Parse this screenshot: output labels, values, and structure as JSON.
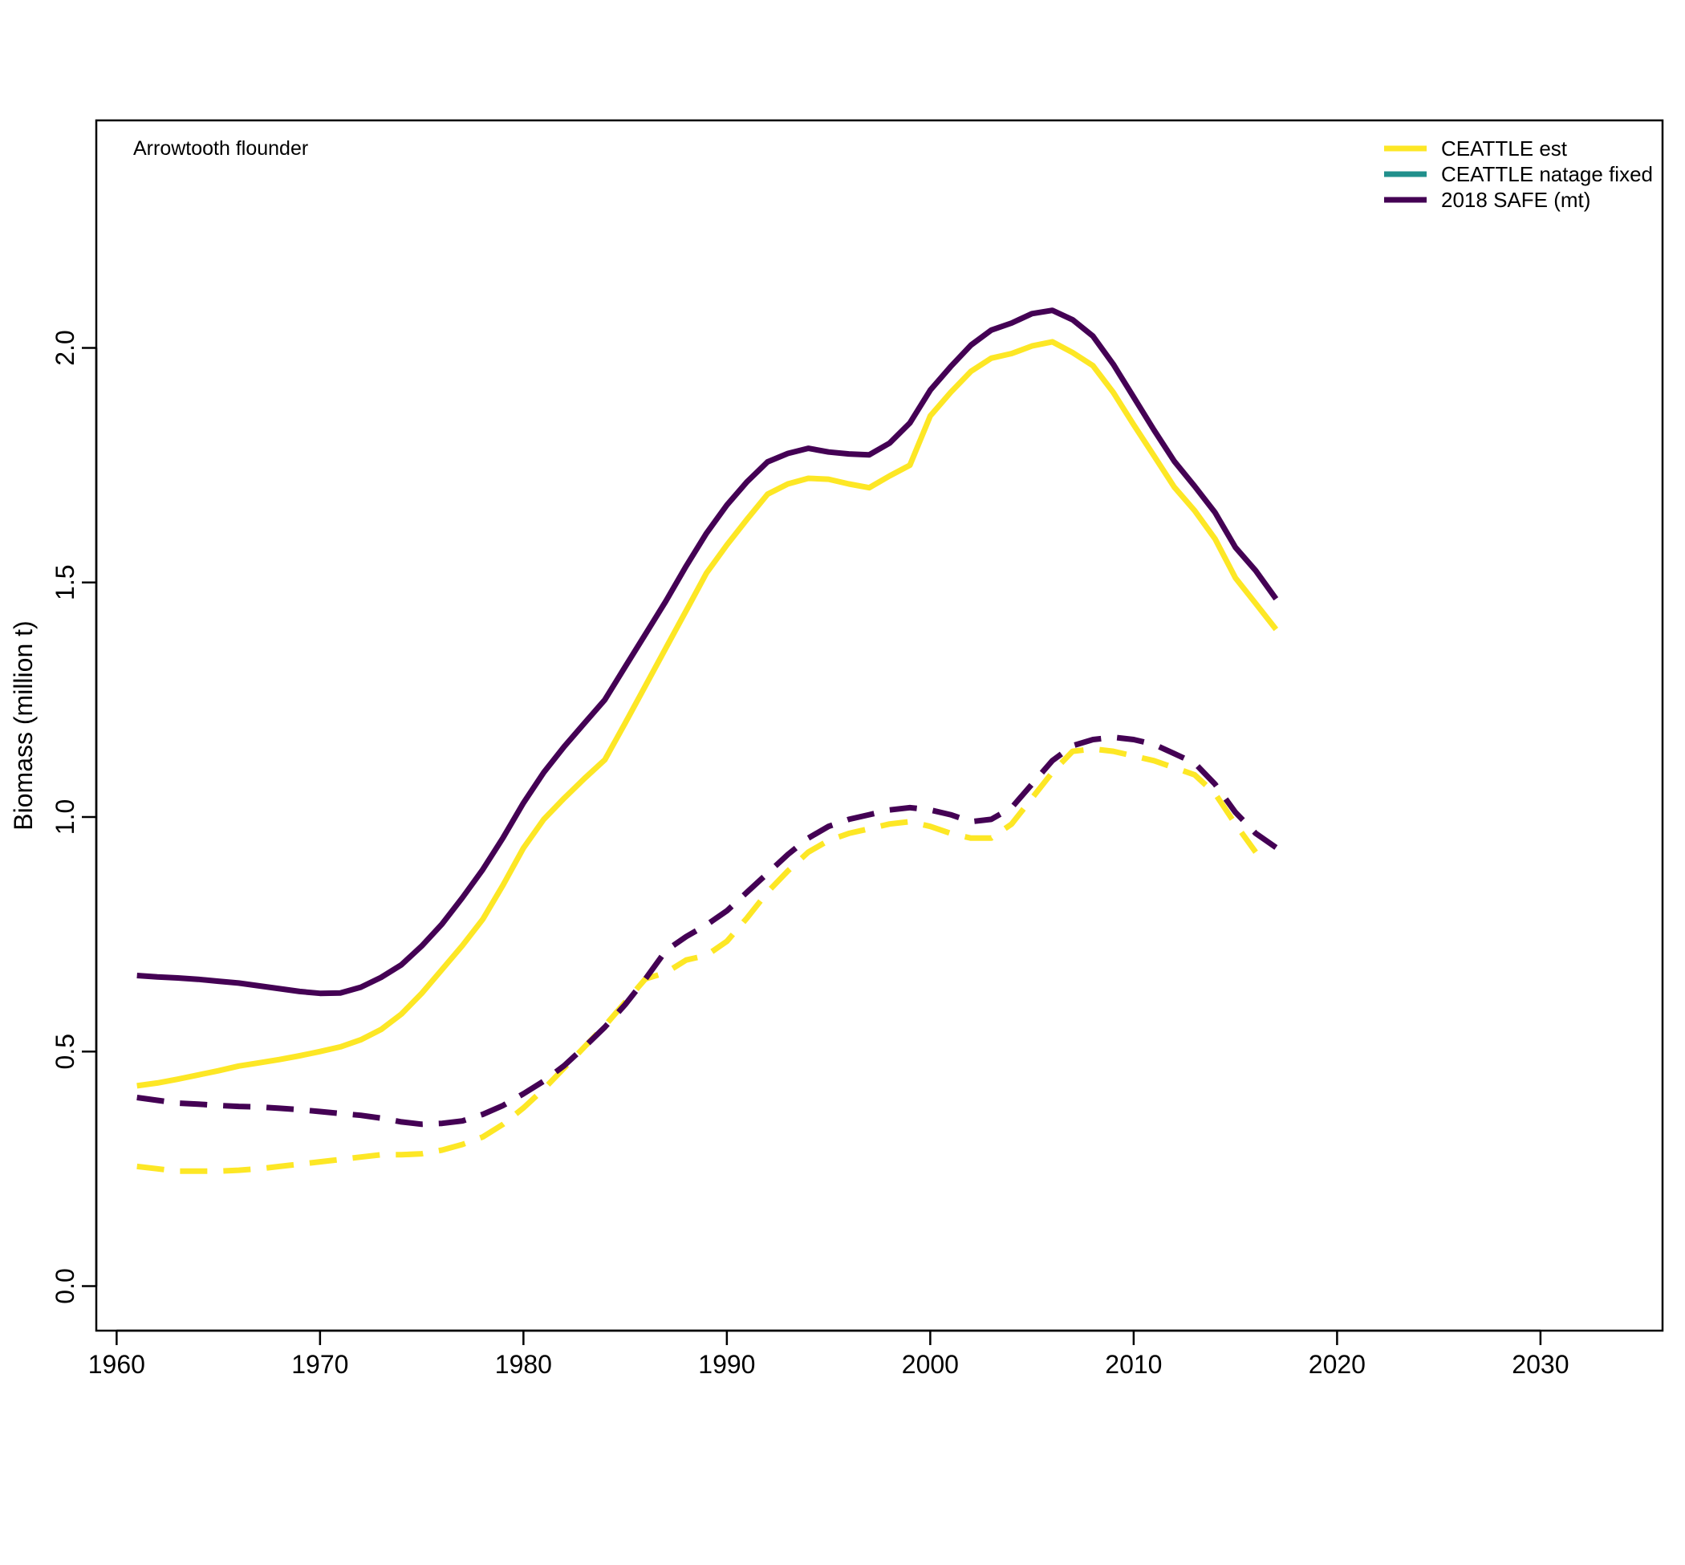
{
  "chart_data": {
    "type": "line",
    "annotation": "Arrowtooth flounder",
    "xlabel": "",
    "ylabel": "Biomass (million t)",
    "xlim": [
      1959,
      2036
    ],
    "ylim": [
      -0.095,
      2.485
    ],
    "x_ticks": [
      1960,
      1970,
      1980,
      1990,
      2000,
      2010,
      2020,
      2030
    ],
    "y_ticks": [
      0.0,
      0.5,
      1.0,
      1.5,
      2.0
    ],
    "y_tick_labels": [
      "0.0",
      "0.5",
      "1.0",
      "1.5",
      "2.0"
    ],
    "grid": false,
    "legend_position": "top-right",
    "legend": [
      {
        "label": "CEATTLE est",
        "color": "#FDE725"
      },
      {
        "label": "CEATTLE natage fixed",
        "color": "#21908C"
      },
      {
        "label": "2018 SAFE (mt)",
        "color": "#440154"
      }
    ],
    "x": [
      1961,
      1962,
      1963,
      1964,
      1965,
      1966,
      1967,
      1968,
      1969,
      1970,
      1971,
      1972,
      1973,
      1974,
      1975,
      1976,
      1977,
      1978,
      1979,
      1980,
      1981,
      1982,
      1983,
      1984,
      1985,
      1986,
      1987,
      1988,
      1989,
      1990,
      1991,
      1992,
      1993,
      1994,
      1995,
      1996,
      1997,
      1998,
      1999,
      2000,
      2001,
      2002,
      2003,
      2004,
      2005,
      2006,
      2007,
      2008,
      2009,
      2010,
      2011,
      2012,
      2013,
      2014,
      2015,
      2016,
      2017
    ],
    "series": [
      {
        "name": "CEATTLE est",
        "color": "#FDE725",
        "dash": false,
        "values": [
          0.427,
          0.433,
          0.441,
          0.45,
          0.459,
          0.469,
          0.476,
          0.483,
          0.491,
          0.5,
          0.51,
          0.525,
          0.547,
          0.58,
          0.624,
          0.675,
          0.726,
          0.782,
          0.855,
          0.934,
          0.995,
          1.04,
          1.082,
          1.122,
          1.2,
          1.28,
          1.36,
          1.44,
          1.52,
          1.58,
          1.635,
          1.688,
          1.71,
          1.722,
          1.72,
          1.71,
          1.702,
          1.727,
          1.75,
          1.855,
          1.905,
          1.95,
          1.978,
          1.988,
          2.004,
          2.013,
          1.99,
          1.962,
          1.905,
          1.836,
          1.77,
          1.703,
          1.653,
          1.593,
          1.51,
          1.455,
          1.4
        ]
      },
      {
        "name": "2018 SAFE (mt)",
        "color": "#440154",
        "dash": false,
        "values": [
          0.662,
          0.659,
          0.657,
          0.654,
          0.65,
          0.646,
          0.64,
          0.634,
          0.628,
          0.624,
          0.625,
          0.637,
          0.658,
          0.685,
          0.725,
          0.772,
          0.828,
          0.888,
          0.956,
          1.03,
          1.095,
          1.15,
          1.2,
          1.25,
          1.32,
          1.39,
          1.46,
          1.535,
          1.605,
          1.665,
          1.715,
          1.757,
          1.775,
          1.786,
          1.778,
          1.774,
          1.772,
          1.797,
          1.84,
          1.91,
          1.96,
          2.006,
          2.038,
          2.053,
          2.073,
          2.08,
          2.06,
          2.025,
          1.965,
          1.895,
          1.825,
          1.758,
          1.705,
          1.649,
          1.575,
          1.525,
          1.465
        ]
      },
      {
        "name": "CEATTLE est",
        "color": "#FDE725",
        "dash": true,
        "values": [
          0.255,
          0.25,
          0.245,
          0.245,
          0.245,
          0.247,
          0.25,
          0.255,
          0.26,
          0.265,
          0.27,
          0.275,
          0.28,
          0.28,
          0.282,
          0.29,
          0.302,
          0.318,
          0.345,
          0.38,
          0.42,
          0.465,
          0.51,
          0.555,
          0.605,
          0.655,
          0.668,
          0.695,
          0.705,
          0.735,
          0.785,
          0.84,
          0.885,
          0.925,
          0.95,
          0.965,
          0.975,
          0.985,
          0.99,
          0.98,
          0.965,
          0.955,
          0.955,
          0.985,
          1.04,
          1.095,
          1.14,
          1.145,
          1.14,
          1.13,
          1.12,
          1.105,
          1.09,
          1.05,
          0.985,
          0.925,
          null
        ]
      },
      {
        "name": "2018 SAFE (mt)",
        "color": "#440154",
        "dash": true,
        "values": [
          0.402,
          0.396,
          0.39,
          0.388,
          0.385,
          0.383,
          0.382,
          0.379,
          0.376,
          0.372,
          0.368,
          0.364,
          0.358,
          0.35,
          0.345,
          0.347,
          0.352,
          0.366,
          0.385,
          0.41,
          0.437,
          0.47,
          0.51,
          0.552,
          0.6,
          0.655,
          0.715,
          0.745,
          0.77,
          0.8,
          0.84,
          0.88,
          0.92,
          0.955,
          0.98,
          0.995,
          1.005,
          1.015,
          1.02,
          1.015,
          1.005,
          0.99,
          0.995,
          1.02,
          1.07,
          1.12,
          1.152,
          1.165,
          1.17,
          1.165,
          1.155,
          1.135,
          1.115,
          1.07,
          1.01,
          0.965,
          0.935
        ]
      }
    ]
  }
}
